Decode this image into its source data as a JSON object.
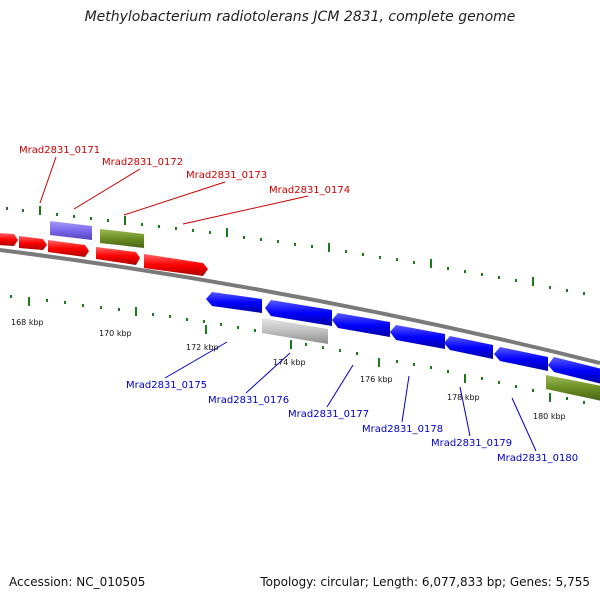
{
  "title": "Methylobacterium radiotolerans JCM 2831, complete genome",
  "footer": {
    "accession": "Accession: NC_010505",
    "topology": "Topology: circular; Length: 6,077,833 bp; Genes: 5,755"
  },
  "colors": {
    "forward_gene": "#ff0000",
    "reverse_gene": "#0000ff",
    "rna_gene": "#6b8e23",
    "hypothetical_gene": "#7b68ee",
    "pseudo_gene": "#c0c0c0",
    "backbone": "#808080",
    "tick": "#1a7a1a",
    "label_top": "#cc0000",
    "label_bottom": "#0000cc"
  },
  "top_labels": [
    "Mrad2831_0171",
    "Mrad2831_0172",
    "Mrad2831_0173",
    "Mrad2831_0174"
  ],
  "bottom_labels": [
    "Mrad2831_0175",
    "Mrad2831_0176",
    "Mrad2831_0177",
    "Mrad2831_0178",
    "Mrad2831_0179",
    "Mrad2831_0180"
  ],
  "kbp_labels": [
    "168 kbp",
    "170 kbp",
    "172 kbp",
    "174 kbp",
    "176 kbp",
    "178 kbp",
    "180 kbp"
  ]
}
